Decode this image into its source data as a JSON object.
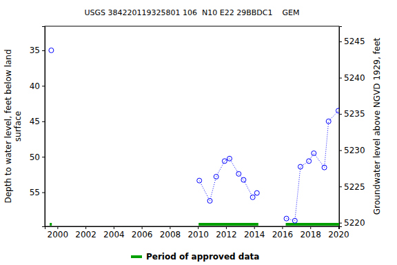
{
  "chart_data": {
    "type": "line",
    "title": "USGS 384220119325801 106  N10 E22 29BBDC1    GEM",
    "y_label": "Depth to water level, feet below land surface",
    "y2_label": "Groundwater level above NGVD 1929, feet",
    "x": [
      1999.56,
      null,
      2010.1,
      2010.85,
      2011.3,
      2011.9,
      2012.25,
      2012.9,
      2013.25,
      2013.9,
      2014.2,
      null,
      2016.3,
      2016.9,
      2017.3,
      2017.9,
      2018.25,
      2019.0,
      2019.3,
      2020.0
    ],
    "values": [
      35.0,
      null,
      53.35,
      56.2,
      52.8,
      50.6,
      50.25,
      52.4,
      53.25,
      55.7,
      55.1,
      null,
      58.7,
      59.0,
      51.4,
      50.6,
      49.5,
      51.5,
      45.0,
      43.5
    ],
    "color": "#0000ff",
    "marker": "circle",
    "line_style": "dotted",
    "xlim": [
      1999.1,
      2020.05
    ],
    "xticks": [
      2000,
      2002,
      2004,
      2006,
      2008,
      2010,
      2012,
      2014,
      2016,
      2018,
      2020
    ],
    "ylim": [
      59.8,
      31.6
    ],
    "yticks": [
      35,
      40,
      45,
      50,
      55
    ],
    "y2lim": [
      5219.5,
      5247.1
    ],
    "y2ticks": [
      5220,
      5225,
      5230,
      5235,
      5240,
      5245
    ],
    "approved_periods": {
      "name": "Period of approved data",
      "color": "#00a000",
      "periods": [
        [
          1999.45,
          1999.6
        ],
        [
          2010.05,
          2014.3
        ],
        [
          2016.25,
          2020.05
        ]
      ]
    },
    "legend": "bottom"
  }
}
